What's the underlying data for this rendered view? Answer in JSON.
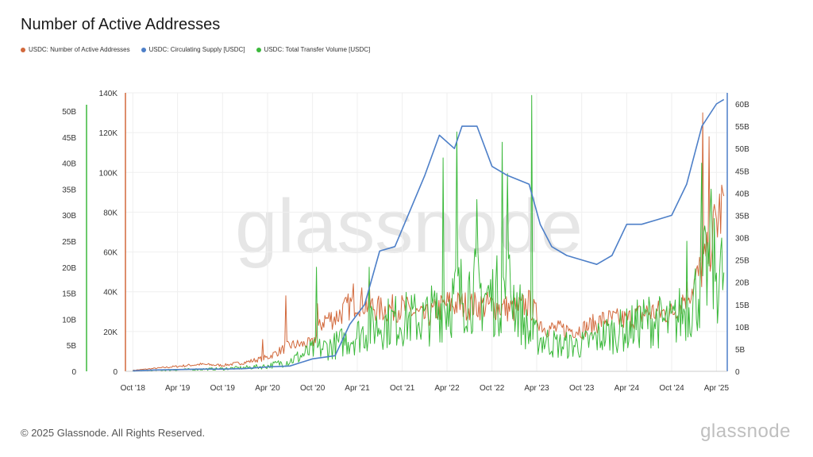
{
  "brand": {
    "copyright": "© 2025 Glassnode. All Rights Reserved.",
    "logo_text": "glassnode",
    "watermark": "glassnode"
  },
  "chart_data": {
    "type": "line",
    "title": "Number of Active Addresses",
    "legend_position": "top-left",
    "grid": true,
    "x_ticks": [
      "Oct '18",
      "Apr '19",
      "Oct '19",
      "Apr '20",
      "Oct '20",
      "Apr '21",
      "Oct '21",
      "Apr '22",
      "Oct '22",
      "Apr '23",
      "Oct '23",
      "Apr '24",
      "Oct '24",
      "Apr '25"
    ],
    "axes": {
      "left_green": {
        "ticks": [
          "0",
          "5B",
          "10B",
          "15B",
          "20B",
          "25B",
          "30B",
          "35B",
          "40B",
          "45B",
          "50B"
        ],
        "range": [
          0,
          53500000000
        ],
        "color": "#3cb93c"
      },
      "left_orange": {
        "ticks": [
          "0",
          "20K",
          "40K",
          "60K",
          "80K",
          "100K",
          "120K",
          "140K"
        ],
        "range": [
          0,
          140000
        ],
        "color": "#d2693c"
      },
      "right_blue": {
        "ticks": [
          "0",
          "5B",
          "10B",
          "15B",
          "20B",
          "25B",
          "30B",
          "35B",
          "40B",
          "45B",
          "50B",
          "55B",
          "60B"
        ],
        "range": [
          0,
          62500000000
        ],
        "color": "#4d7fc8"
      }
    },
    "series": [
      {
        "name": "USDC: Number of Active Addresses",
        "color": "#d2693c",
        "axis": "left_orange",
        "x": [
          "2018-10-01",
          "2019-01-01",
          "2019-04-01",
          "2019-07-01",
          "2019-10-01",
          "2020-01-01",
          "2020-04-01",
          "2020-07-01",
          "2020-10-01",
          "2020-11-15",
          "2021-01-01",
          "2021-04-01",
          "2021-07-01",
          "2021-10-01",
          "2022-01-01",
          "2022-04-01",
          "2022-07-01",
          "2022-10-01",
          "2023-01-01",
          "2023-03-01",
          "2023-05-01",
          "2023-07-01",
          "2023-10-01",
          "2024-01-01",
          "2024-04-01",
          "2024-07-01",
          "2024-10-01",
          "2025-01-01",
          "2025-02-15",
          "2025-04-01",
          "2025-05-01"
        ],
        "values": [
          500,
          1500,
          2500,
          3500,
          3000,
          4500,
          7000,
          13000,
          14000,
          26000,
          27000,
          36000,
          31000,
          32000,
          27000,
          34000,
          33000,
          33000,
          31000,
          34000,
          22000,
          21000,
          21000,
          26000,
          26000,
          30000,
          29000,
          44000,
          55000,
          75000,
          85000
        ]
      },
      {
        "name": "USDC: Circulating Supply [USDC]",
        "color": "#4d7fc8",
        "axis": "right_blue",
        "x": [
          "2018-10-01",
          "2019-01-01",
          "2019-04-01",
          "2019-07-01",
          "2019-10-01",
          "2020-01-01",
          "2020-04-01",
          "2020-07-01",
          "2020-10-01",
          "2021-01-01",
          "2021-03-01",
          "2021-05-01",
          "2021-07-01",
          "2021-09-01",
          "2021-11-01",
          "2022-01-01",
          "2022-03-01",
          "2022-05-01",
          "2022-06-01",
          "2022-08-01",
          "2022-10-01",
          "2022-12-01",
          "2023-01-15",
          "2023-03-01",
          "2023-04-15",
          "2023-06-01",
          "2023-08-01",
          "2023-10-01",
          "2023-12-01",
          "2024-02-01",
          "2024-04-01",
          "2024-06-01",
          "2024-08-01",
          "2024-10-01",
          "2024-12-01",
          "2025-02-01",
          "2025-04-01",
          "2025-05-01"
        ],
        "values": [
          100000000.0,
          300000000.0,
          400000000.0,
          500000000.0,
          500000000.0,
          600000000.0,
          1000000000.0,
          1200000000.0,
          2800000000.0,
          3500000000.0,
          10500000000.0,
          15000000000.0,
          27000000000.0,
          28000000000.0,
          36000000000.0,
          44000000000.0,
          53000000000.0,
          50000000000.0,
          55000000000.0,
          55000000000.0,
          46000000000.0,
          44000000000.0,
          43000000000.0,
          42000000000.0,
          33000000000.0,
          28000000000.0,
          26000000000.0,
          25000000000.0,
          24000000000.0,
          26000000000.0,
          33000000000.0,
          33000000000.0,
          34000000000.0,
          35000000000.0,
          42000000000.0,
          55000000000.0,
          60000000000.0,
          61000000000.0
        ]
      },
      {
        "name": "USDC: Total Transfer Volume [USDC]",
        "color": "#3cb93c",
        "axis": "left_green",
        "x": [
          "2018-10-01",
          "2019-01-01",
          "2019-04-01",
          "2019-07-01",
          "2019-10-01",
          "2020-01-01",
          "2020-04-01",
          "2020-07-01",
          "2020-10-01",
          "2021-01-01",
          "2021-04-01",
          "2021-07-01",
          "2021-10-01",
          "2022-01-01",
          "2022-04-01",
          "2022-07-01",
          "2022-10-01",
          "2022-12-15",
          "2023-03-01",
          "2023-05-01",
          "2023-07-01",
          "2023-10-01",
          "2024-01-01",
          "2024-04-01",
          "2024-07-01",
          "2024-10-01",
          "2025-01-01",
          "2025-03-01",
          "2025-05-01"
        ],
        "values": [
          100000000.0,
          200000000.0,
          300000000.0,
          400000000.0,
          500000000.0,
          700000000.0,
          1000000000.0,
          2000000000.0,
          4000000000.0,
          5000000000.0,
          7000000000.0,
          9000000000.0,
          10000000000.0,
          10000000000.0,
          13000000000.0,
          16000000000.0,
          14000000000.0,
          16000000000.0,
          7000000000.0,
          6000000000.0,
          5000000000.0,
          5000000000.0,
          7000000000.0,
          8000000000.0,
          10000000000.0,
          9000000000.0,
          14000000000.0,
          20000000000.0,
          18000000000.0
        ]
      }
    ],
    "spikes": {
      "left_orange": [
        [
          "2020-03-13",
          16000
        ],
        [
          "2020-06-15",
          38000
        ],
        [
          "2020-10-20",
          34000
        ],
        [
          "2021-03-15",
          44000
        ],
        [
          "2021-05-19",
          47000
        ],
        [
          "2025-02-03",
          130000
        ],
        [
          "2025-03-01",
          118000
        ]
      ],
      "left_green": [
        [
          "2020-10-15",
          20000000000
        ],
        [
          "2021-05-19",
          20000000000
        ],
        [
          "2022-03-15",
          41000000000
        ],
        [
          "2022-05-10",
          46000000000
        ],
        [
          "2022-08-01",
          33000000000
        ],
        [
          "2022-11-10",
          44000000000
        ],
        [
          "2022-12-01",
          38000000000
        ],
        [
          "2023-03-11",
          53000000000
        ],
        [
          "2024-12-01",
          25000000000
        ],
        [
          "2025-02-01",
          40000000000
        ],
        [
          "2025-03-10",
          35000000000
        ]
      ]
    }
  }
}
